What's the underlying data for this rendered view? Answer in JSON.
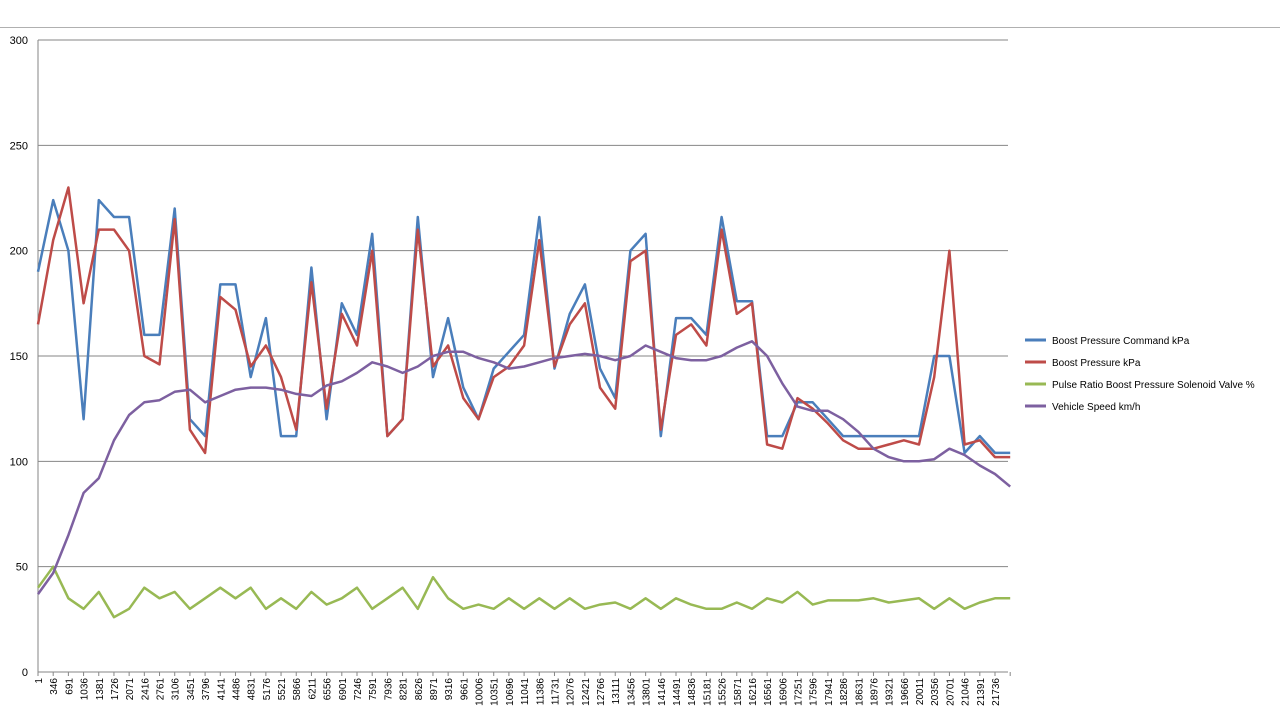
{
  "chart_data": {
    "type": "line",
    "categories": [
      "1",
      "346",
      "691",
      "1036",
      "1381",
      "1726",
      "2071",
      "2416",
      "2761",
      "3106",
      "3451",
      "3796",
      "4141",
      "4486",
      "4831",
      "5176",
      "5521",
      "5866",
      "6211",
      "6556",
      "6901",
      "7246",
      "7591",
      "7936",
      "8281",
      "8626",
      "8971",
      "9316",
      "9661",
      "10006",
      "10351",
      "10696",
      "11041",
      "11386",
      "11731",
      "12076",
      "12421",
      "12766",
      "13111",
      "13456",
      "13801",
      "14146",
      "14491",
      "14836",
      "15181",
      "15526",
      "15871",
      "16216",
      "16561",
      "16906",
      "17251",
      "17596",
      "17941",
      "18286",
      "18631",
      "18976",
      "19321",
      "19666",
      "20011",
      "20356",
      "20701",
      "21046",
      "21391",
      "21736",
      null
    ],
    "series": [
      {
        "name": "Boost Pressure Command kPa",
        "color": "#4a7ebb",
        "values": [
          190,
          224,
          200,
          120,
          224,
          216,
          216,
          160,
          160,
          220,
          120,
          112,
          184,
          184,
          140,
          168,
          112,
          112,
          192,
          120,
          175,
          160,
          208,
          112,
          120,
          216,
          140,
          168,
          135,
          120,
          144,
          152,
          160,
          216,
          144,
          170,
          184,
          144,
          130,
          200,
          208,
          112,
          168,
          168,
          160,
          216,
          176,
          176,
          112,
          112,
          128,
          128,
          120,
          112,
          112,
          112,
          112,
          112,
          112,
          150,
          150,
          104,
          112,
          104,
          104
        ]
      },
      {
        "name": "Boost Pressure kPa",
        "color": "#be4b48",
        "values": [
          165,
          205,
          230,
          175,
          210,
          210,
          200,
          150,
          146,
          215,
          115,
          104,
          178,
          172,
          145,
          155,
          140,
          115,
          185,
          125,
          170,
          155,
          200,
          112,
          120,
          210,
          145,
          155,
          130,
          120,
          140,
          145,
          155,
          205,
          145,
          165,
          175,
          135,
          125,
          195,
          200,
          115,
          160,
          165,
          155,
          210,
          170,
          175,
          108,
          106,
          130,
          125,
          118,
          110,
          106,
          106,
          108,
          110,
          108,
          140,
          200,
          108,
          110,
          102,
          102
        ]
      },
      {
        "name": "Pulse Ratio Boost Pressure Solenoid Valve %",
        "color": "#98b954",
        "values": [
          40,
          50,
          35,
          30,
          38,
          26,
          30,
          40,
          35,
          38,
          30,
          35,
          40,
          35,
          40,
          30,
          35,
          30,
          38,
          32,
          35,
          40,
          30,
          35,
          40,
          30,
          45,
          35,
          30,
          32,
          30,
          35,
          30,
          35,
          30,
          35,
          30,
          32,
          33,
          30,
          35,
          30,
          35,
          32,
          30,
          30,
          33,
          30,
          35,
          33,
          38,
          32,
          34,
          34,
          34,
          35,
          33,
          34,
          35,
          30,
          35,
          30,
          33,
          35,
          35
        ]
      },
      {
        "name": "Vehicle Speed km/h",
        "color": "#7d60a0",
        "values": [
          37,
          47,
          65,
          85,
          92,
          110,
          122,
          128,
          129,
          133,
          134,
          128,
          131,
          134,
          135,
          135,
          134,
          132,
          131,
          136,
          138,
          142,
          147,
          145,
          142,
          145,
          150,
          152,
          152,
          149,
          147,
          144,
          145,
          147,
          149,
          150,
          151,
          150,
          148,
          150,
          155,
          152,
          149,
          148,
          148,
          150,
          154,
          157,
          150,
          137,
          126,
          124,
          124,
          120,
          114,
          106,
          102,
          100,
          100,
          101,
          106,
          103,
          98,
          94,
          88
        ]
      }
    ],
    "ylim": [
      0,
      300
    ],
    "yticks": [
      0,
      50,
      100,
      150,
      200,
      250,
      300
    ],
    "grid": true,
    "legend": "right"
  }
}
